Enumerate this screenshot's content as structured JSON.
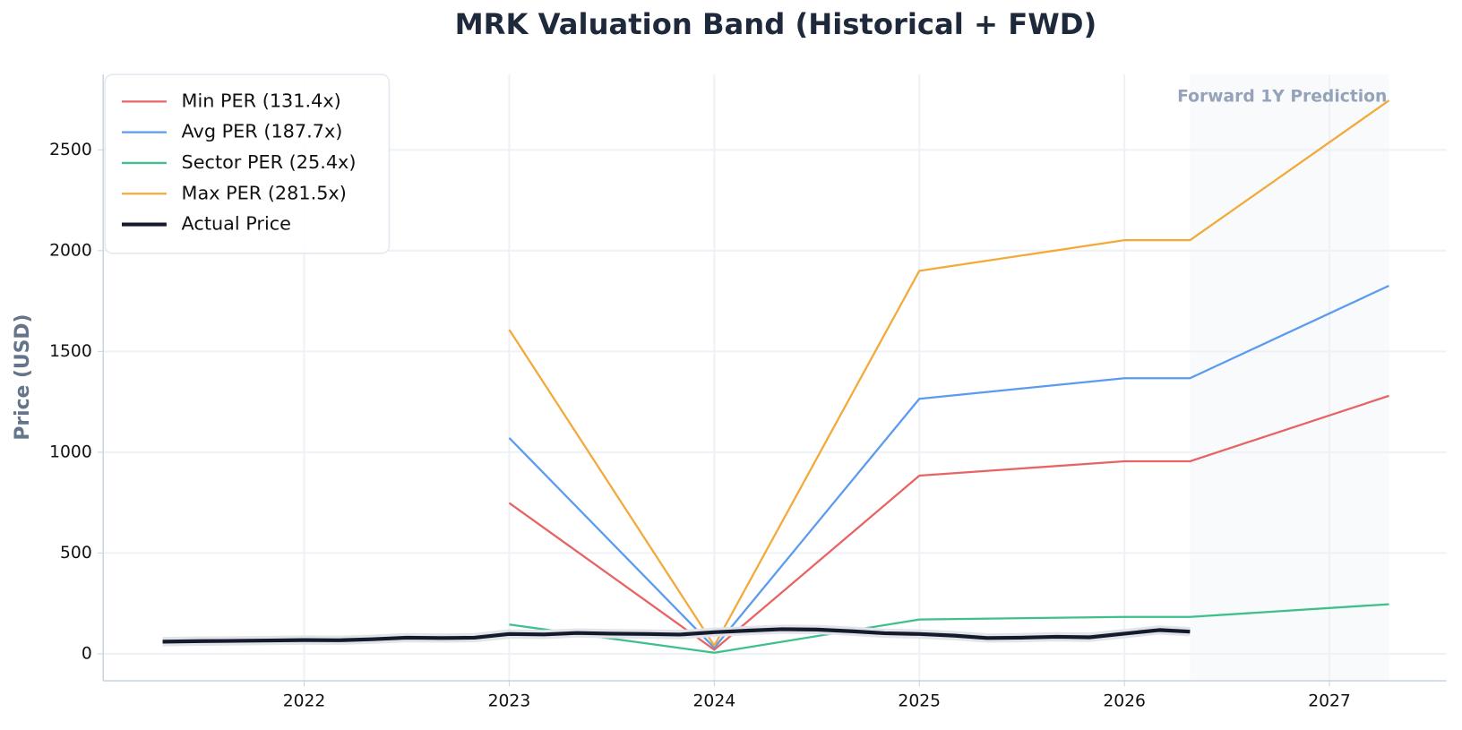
{
  "chart_data": {
    "type": "line",
    "title": "MRK Valuation Band (Historical + FWD)",
    "y_label": "Price (USD)",
    "xlim": [
      2021.02,
      2027.57
    ],
    "xticks": [
      2022,
      2023,
      2024,
      2025,
      2026,
      2027
    ],
    "ylim": [
      -134,
      2874
    ],
    "yticks": [
      0,
      500,
      1000,
      1500,
      2000,
      2500
    ],
    "grid": true,
    "legend": "upper left",
    "forward_region": [
      2026.32,
      2027.29
    ],
    "annotation": "Forward 1Y Prediction",
    "series": [
      {
        "name": "Min PER (131.4x)",
        "color": "#e86464",
        "width": 2.2,
        "x": [
          2023,
          2024,
          2025,
          2026,
          2026.32,
          2027.29
        ],
        "values": [
          748,
          20,
          884,
          955,
          955,
          1280
        ]
      },
      {
        "name": "Avg PER (187.7x)",
        "color": "#5b9bef",
        "width": 2.2,
        "x": [
          2023,
          2024,
          2025,
          2026,
          2026.32,
          2027.29
        ],
        "values": [
          1071,
          30,
          1265,
          1367,
          1367,
          1826
        ]
      },
      {
        "name": "Sector PER (25.4x)",
        "color": "#3fbf8c",
        "width": 2.2,
        "x": [
          2023,
          2024,
          2025,
          2026,
          2026.32,
          2027.29
        ],
        "values": [
          145,
          5,
          170,
          183,
          183,
          246
        ]
      },
      {
        "name": "Max PER (281.5x)",
        "color": "#f2aa3a",
        "width": 2.2,
        "x": [
          2023,
          2024,
          2025,
          2026,
          2026.32,
          2027.29
        ],
        "values": [
          1608,
          40,
          1900,
          2052,
          2052,
          2745
        ]
      },
      {
        "name": "Actual Price",
        "color": "#141b2d",
        "width": 4,
        "x": [
          2021.31,
          2021.5,
          2021.67,
          2021.83,
          2022.0,
          2022.17,
          2022.33,
          2022.5,
          2022.67,
          2022.83,
          2023.0,
          2023.17,
          2023.33,
          2023.5,
          2023.67,
          2023.83,
          2024.0,
          2024.17,
          2024.33,
          2024.5,
          2024.67,
          2024.83,
          2025.0,
          2025.17,
          2025.33,
          2025.5,
          2025.67,
          2025.83,
          2026.0,
          2026.17,
          2026.32
        ],
        "values": [
          60,
          63,
          64,
          66,
          68,
          67,
          72,
          80,
          78,
          80,
          98,
          96,
          103,
          100,
          98,
          95,
          107,
          115,
          122,
          120,
          112,
          102,
          98,
          90,
          78,
          80,
          84,
          82,
          100,
          118,
          110
        ]
      }
    ]
  }
}
